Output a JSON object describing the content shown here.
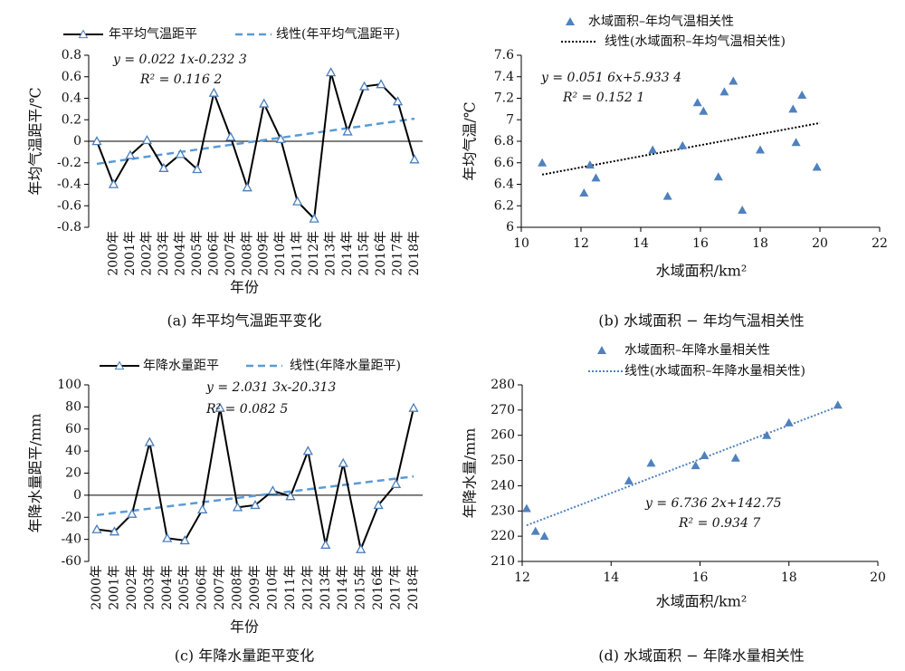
{
  "chart_data": [
    {
      "type": "line",
      "caption": "(a) 年平均气温距平变化",
      "xlabel": "年份",
      "ylabel": "年均气温距平/℃",
      "categories": [
        null,
        "2000年",
        "2001年",
        "2002年",
        "2003年",
        "2004年",
        "2005年",
        "2006年",
        "2007年",
        "2008年",
        "2009年",
        "2010年",
        "2011年",
        "2012年",
        "2013年",
        "2014年",
        "2015年",
        "2016年",
        "2017年",
        "2018年"
      ],
      "series": [
        {
          "name": "年平均气温距平",
          "color": "#000000",
          "marker_color": "#4a7ebb",
          "values": [
            0,
            -0.4,
            -0.13,
            0.01,
            -0.25,
            -0.12,
            -0.26,
            0.45,
            0.04,
            -0.43,
            0.35,
            0.02,
            -0.56,
            -0.72,
            0.64,
            0.09,
            0.51,
            0.53,
            0.37,
            -0.17
          ]
        }
      ],
      "trend": {
        "name": "线性(年平均气温距平)",
        "color": "#5b9bd5",
        "style": "dashed",
        "values": [
          -0.21,
          0.21
        ]
      },
      "annotations": [
        "y = 0.022 1x-0.232 3",
        "R² = 0.116 2"
      ],
      "ylim": [
        -0.8,
        0.8
      ],
      "yticks": [
        -0.8,
        -0.6,
        -0.4,
        -0.2,
        0,
        0.2,
        0.4,
        0.6,
        0.8
      ]
    },
    {
      "type": "scatter",
      "caption": "(b) 水域面积 − 年均气温相关性",
      "xlabel": "水域面积/km²",
      "ylabel": "年均气温/℃",
      "series": [
        {
          "name": "水域面积–年均气温相关性",
          "color": "#4f81bd",
          "x": [
            10.7,
            12.1,
            12.3,
            12.5,
            14.4,
            14.9,
            15.4,
            15.9,
            16.1,
            16.6,
            16.8,
            17.1,
            17.4,
            18,
            19.1,
            19.2,
            19.4,
            19.9
          ],
          "values": [
            6.6,
            6.32,
            6.58,
            6.46,
            6.72,
            6.29,
            6.76,
            7.16,
            7.08,
            6.47,
            7.26,
            7.36,
            6.16,
            6.72,
            7.1,
            6.79,
            7.23,
            6.56
          ]
        }
      ],
      "trend": {
        "name": "线性(水域面积–年均气温相关性)",
        "color": "#000000",
        "style": "dotted",
        "x": [
          10.7,
          20
        ],
        "values": [
          6.49,
          6.97
        ]
      },
      "annotations": [
        "y = 0.051 6x+5.933 4",
        "R² = 0.152 1"
      ],
      "xlim": [
        10,
        22
      ],
      "xticks": [
        10,
        12,
        14,
        16,
        18,
        20,
        22
      ],
      "ylim": [
        6,
        7.6
      ],
      "yticks": [
        6,
        6.2,
        6.4,
        6.6,
        6.8,
        7,
        7.2,
        7.4,
        7.6
      ]
    },
    {
      "type": "line",
      "caption": "(c) 年降水量距平变化",
      "xlabel": "年份",
      "ylabel": "年降水量距平/mm",
      "categories": [
        "2000年",
        "2001年",
        "2002年",
        "2003年",
        "2004年",
        "2005年",
        "2006年",
        "2007年",
        "2008年",
        "2009年",
        "2010年",
        "2011年",
        "2012年",
        "2013年",
        "2014年",
        "2015年",
        "2016年",
        "2017年",
        "2018年"
      ],
      "series": [
        {
          "name": "年降水量距平",
          "color": "#000000",
          "marker_color": "#4a7ebb",
          "values": [
            -31,
            -33,
            -17,
            48,
            -39,
            -41,
            -13,
            79,
            -11,
            -9,
            4,
            -1,
            40,
            -45,
            29,
            -49,
            -9,
            10,
            79
          ]
        }
      ],
      "trend": {
        "name": "线性(年降水量距平)",
        "color": "#5b9bd5",
        "style": "dashed",
        "values": [
          -18,
          17
        ]
      },
      "annotations": [
        "y = 2.031 3x-20.313",
        "R² = 0.082 5"
      ],
      "ylim": [
        -60,
        100
      ],
      "yticks": [
        -60,
        -40,
        -20,
        0,
        20,
        40,
        60,
        80,
        100
      ]
    },
    {
      "type": "scatter",
      "caption": "(d) 水域面积 − 年降水量相关性",
      "xlabel": "水域面积/km²",
      "ylabel": "年降水量/mm",
      "series": [
        {
          "name": "水域面积–年降水量相关性",
          "color": "#4f81bd",
          "x": [
            12.1,
            12.3,
            12.5,
            14.4,
            14.9,
            15.9,
            16.1,
            16.8,
            17.5,
            18,
            19.1
          ],
          "values": [
            231,
            222,
            220,
            242,
            249,
            248,
            252,
            251,
            260,
            265,
            272
          ]
        }
      ],
      "trend": {
        "name": "线性(水域面积–年降水量相关性)",
        "color": "#4f81bd",
        "style": "dotted",
        "x": [
          12.1,
          19.1
        ],
        "values": [
          224.3,
          271.4
        ]
      },
      "annotations": [
        "y = 6.736 2x+142.75",
        "R² = 0.934 7"
      ],
      "xlim": [
        12,
        20
      ],
      "xticks": [
        12,
        14,
        16,
        18,
        20
      ],
      "ylim": [
        210,
        280
      ],
      "yticks": [
        210,
        220,
        230,
        240,
        250,
        260,
        270,
        280
      ]
    }
  ]
}
